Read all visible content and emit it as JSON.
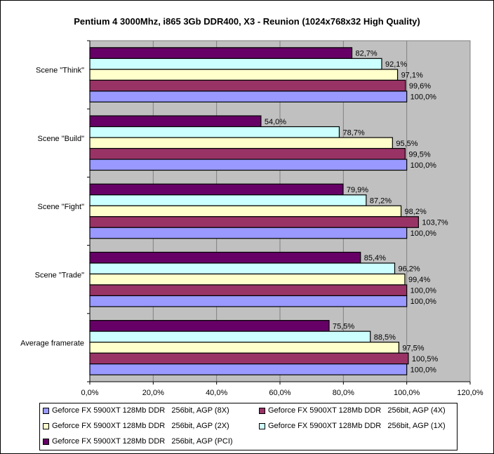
{
  "chart_data": {
    "type": "bar",
    "orientation": "horizontal",
    "title": "Pentium 4 3000Mhz, i865 3Gb DDR400, X3 - Reunion (1024x768x32  High Quality)",
    "categories": [
      "Scene \"Think\"",
      "Scene \"Build\"",
      "Scene \"Fight\"",
      "Scene \"Trade\"",
      "Average framerate"
    ],
    "series": [
      {
        "name": "Geforce FX 5900XT 128Mb DDR   256bit, AGP (8X)",
        "color": "#9999FF",
        "values": [
          100.0,
          100.0,
          100.0,
          100.0,
          100.0
        ]
      },
      {
        "name": "Geforce FX 5900XT 128Mb DDR   256bit, AGP (4X)",
        "color": "#993366",
        "values": [
          99.6,
          99.5,
          103.7,
          100.0,
          100.5
        ]
      },
      {
        "name": "Geforce FX 5900XT 128Mb DDR   256bit, AGP (2X)",
        "color": "#FFFFCC",
        "values": [
          97.1,
          95.5,
          98.2,
          99.4,
          97.5
        ]
      },
      {
        "name": "Geforce FX 5900XT 128Mb DDR   256bit, AGP (1X)",
        "color": "#CCFFFF",
        "values": [
          92.1,
          78.7,
          87.2,
          96.2,
          88.5
        ]
      },
      {
        "name": "Geforce FX 5900XT 128Mb DDR   256bit, AGP (PCI)",
        "color": "#660066",
        "values": [
          82.7,
          54.0,
          79.9,
          85.4,
          75.5
        ]
      }
    ],
    "xlim": [
      0,
      120
    ],
    "xticks": [
      "0,0%",
      "20,0%",
      "40,0%",
      "60,0%",
      "80,0%",
      "100,0%",
      "120,0%"
    ],
    "data_labels": true,
    "grid": "vertical",
    "plot_background": "#C0C0C0",
    "legend_position": "bottom"
  }
}
